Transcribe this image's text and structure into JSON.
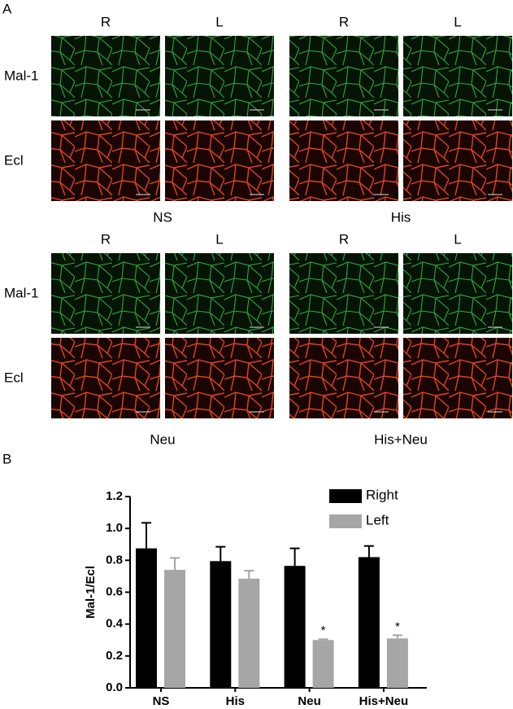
{
  "panel_a": {
    "label": "A",
    "blocks": [
      {
        "row_labels": [
          "Mal-1",
          "Ecl"
        ],
        "groups": [
          {
            "name": "NS",
            "columns": [
              "R",
              "L"
            ]
          },
          {
            "name": "His",
            "columns": [
              "R",
              "L"
            ]
          }
        ]
      },
      {
        "row_labels": [
          "Mal-1",
          "Ecl"
        ],
        "groups": [
          {
            "name": "Neu",
            "columns": [
              "R",
              "L"
            ]
          },
          {
            "name": "His+Neu",
            "columns": [
              "R",
              "L"
            ]
          }
        ]
      }
    ]
  },
  "panel_b": {
    "label": "B"
  },
  "chart_data": {
    "type": "bar",
    "y_label": "Mal-1/Ecl",
    "categories": [
      "NS",
      "His",
      "Neu",
      "His+Neu"
    ],
    "series": [
      {
        "name": "Right",
        "color": "#000000",
        "values": [
          0.875,
          0.795,
          0.765,
          0.82
        ],
        "errors": [
          0.16,
          0.09,
          0.11,
          0.07
        ]
      },
      {
        "name": "Left",
        "color": "#a6a6a6",
        "values": [
          0.74,
          0.685,
          0.3,
          0.31
        ],
        "errors": [
          0.075,
          0.05,
          0.005,
          0.02
        ],
        "markers": [
          null,
          null,
          "*",
          "*"
        ]
      }
    ],
    "ylim": [
      0,
      1.2
    ],
    "yticks": [
      {
        "value": 0,
        "label": "0.0"
      },
      0.2,
      0.4,
      0.6,
      0.8,
      {
        "value": 1,
        "label": "1.0"
      },
      1.2
    ],
    "legend": "upper right"
  }
}
